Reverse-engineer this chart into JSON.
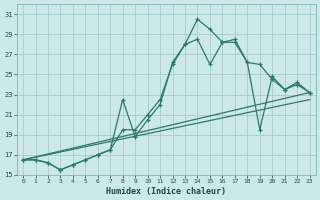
{
  "xlabel": "Humidex (Indice chaleur)",
  "bg_color": "#cce8e8",
  "grid_color": "#aacccc",
  "line_color": "#2a7a6a",
  "xlim": [
    -0.5,
    23.5
  ],
  "ylim": [
    15,
    32
  ],
  "yticks": [
    15,
    17,
    19,
    21,
    23,
    25,
    27,
    29,
    31
  ],
  "xticks": [
    0,
    1,
    2,
    3,
    4,
    5,
    6,
    7,
    8,
    9,
    10,
    11,
    12,
    13,
    14,
    15,
    16,
    17,
    18,
    19,
    20,
    21,
    22,
    23
  ],
  "series_marked": [
    {
      "x": [
        0,
        1,
        2,
        3,
        4,
        5,
        6,
        7,
        8,
        9,
        10,
        11,
        12,
        13,
        14,
        15,
        16,
        17,
        18,
        19,
        20,
        21,
        22,
        23
      ],
      "y": [
        16.5,
        16.5,
        16.2,
        15.5,
        16.0,
        16.5,
        17.0,
        17.5,
        22.5,
        18.8,
        20.5,
        22.0,
        26.2,
        28.0,
        30.5,
        29.5,
        28.2,
        28.5,
        26.2,
        19.5,
        24.8,
        23.5,
        24.2,
        23.2
      ]
    },
    {
      "x": [
        0,
        1,
        2,
        3,
        4,
        5,
        6,
        7,
        8,
        9,
        10,
        11,
        12,
        13,
        14,
        15,
        16,
        17,
        18,
        19,
        20,
        21,
        22,
        23
      ],
      "y": [
        16.5,
        16.5,
        16.2,
        15.5,
        16.0,
        16.5,
        17.0,
        17.5,
        19.5,
        19.5,
        21.0,
        22.5,
        26.0,
        28.0,
        28.5,
        26.0,
        28.2,
        28.2,
        26.2,
        26.0,
        24.5,
        23.5,
        24.0,
        23.2
      ]
    }
  ],
  "series_plain": [
    {
      "x": [
        0,
        23
      ],
      "y": [
        16.5,
        22.5
      ]
    },
    {
      "x": [
        0,
        23
      ],
      "y": [
        16.5,
        23.2
      ]
    }
  ]
}
